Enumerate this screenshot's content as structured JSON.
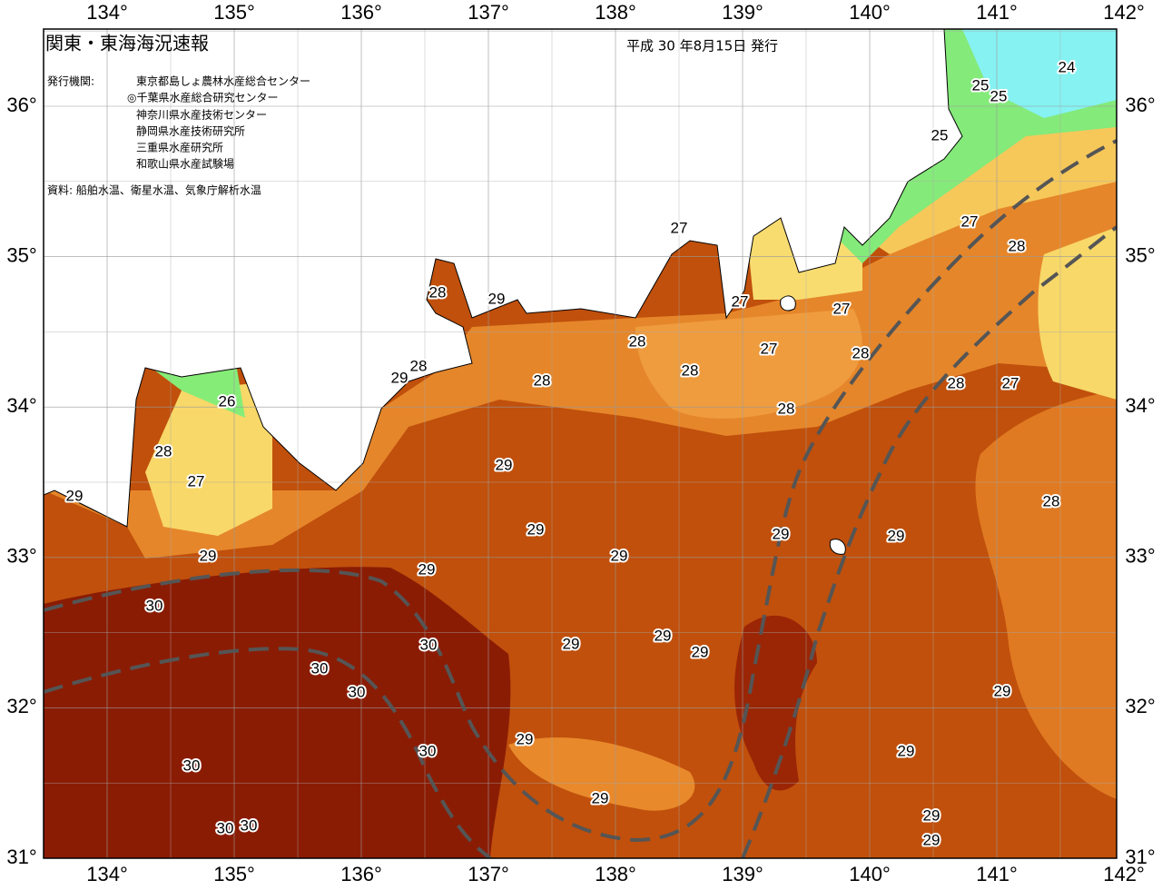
{
  "header": {
    "title": "関東・東海海況速報",
    "date": "平成 30 年8月15日 発行",
    "issuer_label": "発行機関:",
    "issuers": [
      "東京都島しょ農林水産総合センター",
      "◎千葉県水産総合研究センター",
      "神奈川県水産技術センター",
      "静岡県水産技術研究所",
      "三重県水産研究所",
      "和歌山県水産試験場"
    ],
    "source": "資料: 船舶水温、衛星水温、気象庁解析水温"
  },
  "longitudes": [
    {
      "value": 134,
      "label": "134°"
    },
    {
      "value": 135,
      "label": "135°"
    },
    {
      "value": 136,
      "label": "136°"
    },
    {
      "value": 137,
      "label": "137°"
    },
    {
      "value": 138,
      "label": "138°"
    },
    {
      "value": 139,
      "label": "139°"
    },
    {
      "value": 140,
      "label": "140°"
    },
    {
      "value": 141,
      "label": "141°"
    },
    {
      "value": 142,
      "label": "142°"
    }
  ],
  "latitudes": [
    {
      "value": 31,
      "label": "31°"
    },
    {
      "value": 32,
      "label": "32°"
    },
    {
      "value": 33,
      "label": "33°"
    },
    {
      "value": 34,
      "label": "34°"
    },
    {
      "value": 35,
      "label": "35°"
    },
    {
      "value": 36,
      "label": "36°"
    }
  ],
  "contour_labels": [
    24,
    25,
    25,
    25,
    27,
    27,
    28,
    28,
    29,
    27,
    27,
    28,
    27,
    28,
    28,
    29,
    28,
    28,
    28,
    27,
    28,
    26,
    28,
    29,
    27,
    29,
    28,
    29,
    29,
    29,
    29,
    29,
    29,
    30,
    29,
    30,
    29,
    29,
    30,
    30,
    29,
    29,
    30,
    29,
    30,
    29,
    30,
    30,
    29,
    29
  ]
}
